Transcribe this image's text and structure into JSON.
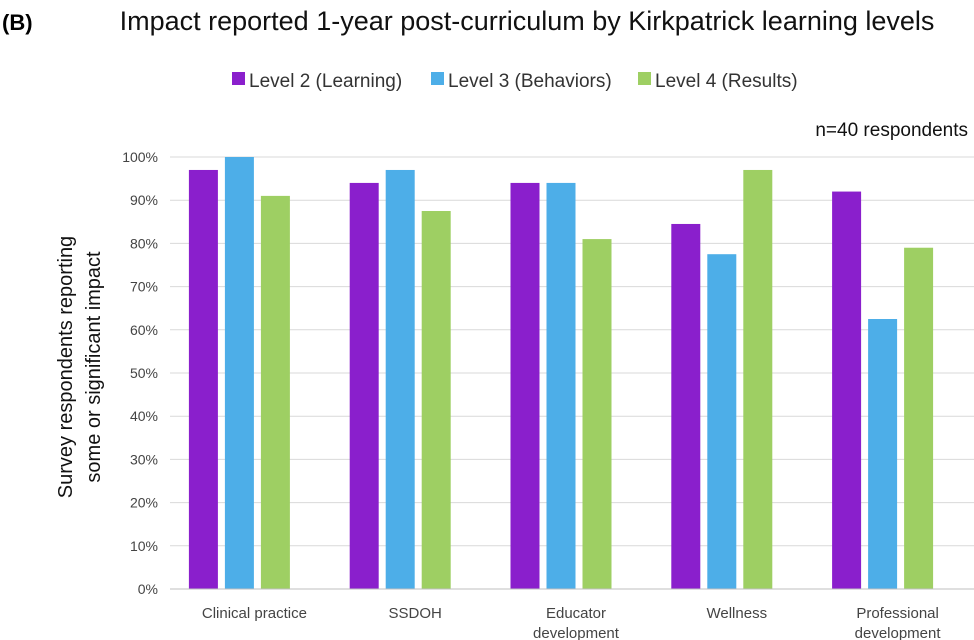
{
  "panel_label": "(B)",
  "chart_data": {
    "type": "bar",
    "title": "Impact reported 1-year post-curriculum by Kirkpatrick learning levels",
    "annotation": "n=40 respondents",
    "ylabel_lines": [
      "Survey respondents reporting",
      "some or significant impact"
    ],
    "xlabel": "",
    "ylim": [
      0,
      100
    ],
    "ytick_step": 10,
    "yticks": [
      "0%",
      "10%",
      "20%",
      "30%",
      "40%",
      "50%",
      "60%",
      "70%",
      "80%",
      "90%",
      "100%"
    ],
    "grid": true,
    "legend_position": "top-center",
    "categories": [
      [
        "Clinical practice"
      ],
      [
        "SSDOH"
      ],
      [
        "Educator",
        "development"
      ],
      [
        "Wellness"
      ],
      [
        "Professional",
        "development"
      ]
    ],
    "series": [
      {
        "name": "Level 2 (Learning)",
        "color": "#8a1fcc",
        "values": [
          97,
          94,
          94,
          84.5,
          92
        ]
      },
      {
        "name": "Level 3 (Behaviors)",
        "color": "#4daee8",
        "values": [
          100,
          97,
          94,
          77.5,
          62.5
        ]
      },
      {
        "name": "Level 4 (Results)",
        "color": "#9ecf63",
        "values": [
          91,
          87.5,
          81,
          97,
          79
        ]
      }
    ]
  }
}
